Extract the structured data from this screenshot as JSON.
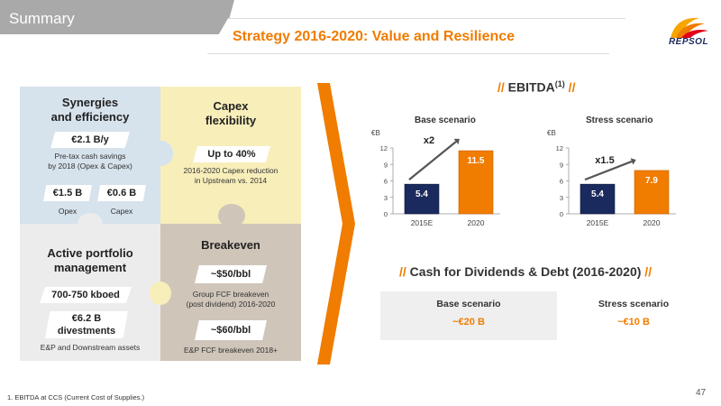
{
  "header": {
    "section": "Summary",
    "title": "Strategy 2016-2020:  Value and Resilience",
    "logo_text": "REPSOL"
  },
  "synergies": {
    "title_line1": "Synergies",
    "title_line2": "and efficiency",
    "main_value": "€2.1 B/y",
    "desc_line1": "Pre-tax cash savings",
    "desc_line2": "by 2018 (Opex & Capex)",
    "opex_value": "€1.5 B",
    "opex_label": "Opex",
    "capex_value": "€0.6 B",
    "capex_label": "Capex"
  },
  "capex": {
    "title_line1": "Capex",
    "title_line2": "flexibility",
    "value": "Up to 40%",
    "desc_line1": "2016-2020 Capex reduction",
    "desc_line2": "in Upstream vs. 2014"
  },
  "portfolio": {
    "title_line1": "Active portfolio",
    "title_line2": "management",
    "kboed": "700-750 kboed",
    "divest_line1": "€6.2 B",
    "divest_line2": "divestments",
    "divest_desc": "E&P and Downstream assets"
  },
  "breakeven": {
    "title": "Breakeven",
    "value1": "~$50/bbl",
    "desc1_line1": "Group FCF breakeven",
    "desc1_line2": "(post dividend)  2016-2020",
    "value2": "~$60/bbl",
    "desc2": "E&P FCF breakeven 2018+"
  },
  "ebitda": {
    "prefix": "// ",
    "title": "EBITDA",
    "sup": "(1)",
    "suffix": " //"
  },
  "chart_data": [
    {
      "type": "bar",
      "title": "Base scenario",
      "unit": "€B",
      "categories": [
        "2015E",
        "2020"
      ],
      "values": [
        5.4,
        11.5
      ],
      "ylim": [
        0,
        12
      ],
      "yticks": [
        0,
        3,
        6,
        9,
        12
      ],
      "annotation": "x2",
      "colors": [
        "#1b2a5e",
        "#f07c00"
      ]
    },
    {
      "type": "bar",
      "title": "Stress scenario",
      "unit": "€B",
      "categories": [
        "2015E",
        "2020"
      ],
      "values": [
        5.4,
        7.9
      ],
      "ylim": [
        0,
        12
      ],
      "yticks": [
        0,
        3,
        6,
        9,
        12
      ],
      "annotation": "x1.5",
      "colors": [
        "#1b2a5e",
        "#f07c00"
      ]
    }
  ],
  "cash": {
    "prefix": "// ",
    "title": "Cash for Dividends & Debt (2016-2020)",
    "suffix": " //",
    "base_label": "Base scenario",
    "base_value": "~€20 B",
    "stress_label": "Stress scenario",
    "stress_value": "~€10 B"
  },
  "footer": {
    "footnote": "1. EBITDA at CCS (Current Cost of Supplies.)",
    "page": "47"
  },
  "colors": {
    "accent": "#f07c00",
    "navy": "#1b2a5e"
  }
}
